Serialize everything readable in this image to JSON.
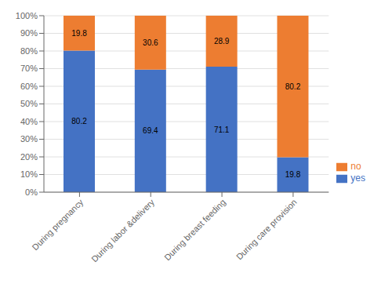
{
  "chart_data": {
    "type": "bar",
    "stacked": true,
    "categories": [
      "During pregnancy",
      "During labor &delivery",
      "During breast feeding",
      "During care provision"
    ],
    "series": [
      {
        "name": "yes",
        "color": "#4472c4",
        "values": [
          80.2,
          69.4,
          71.1,
          19.8
        ]
      },
      {
        "name": "no",
        "color": "#ed7d31",
        "values": [
          19.8,
          30.6,
          28.9,
          80.2
        ]
      }
    ],
    "ylim": [
      0,
      100
    ],
    "yticks": [
      {
        "value": 0,
        "label": "0%"
      },
      {
        "value": 10,
        "label": "10%"
      },
      {
        "value": 20,
        "label": "20%"
      },
      {
        "value": 30,
        "label": "30%"
      },
      {
        "value": 40,
        "label": "40%"
      },
      {
        "value": 50,
        "label": "50%"
      },
      {
        "value": 60,
        "label": "60%"
      },
      {
        "value": 70,
        "label": "70%"
      },
      {
        "value": 80,
        "label": "80%"
      },
      {
        "value": 90,
        "label": "90%"
      },
      {
        "value": 100,
        "label": "100%"
      }
    ],
    "grid": true,
    "legend": "lower right",
    "data_labels": true
  }
}
